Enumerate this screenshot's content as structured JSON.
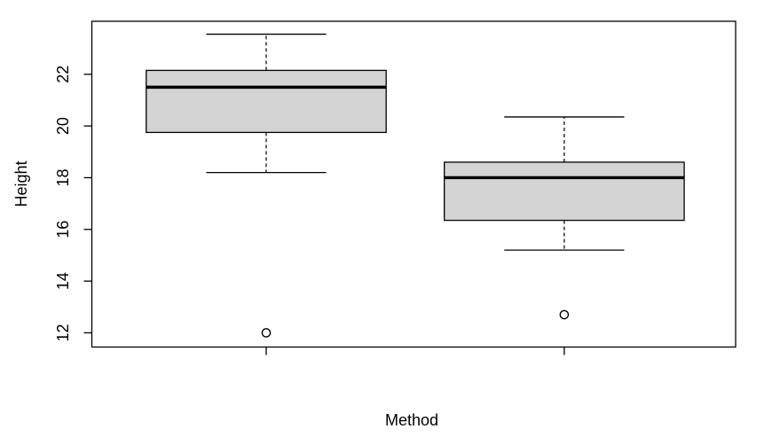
{
  "figure": {
    "background": "#ffffff"
  },
  "chart_data": {
    "type": "boxplot",
    "title": "",
    "xlabel": "Method",
    "ylabel": "Height",
    "x_tick_labels": [
      "",
      ""
    ],
    "y_ticks": [
      12,
      14,
      16,
      18,
      20,
      22
    ],
    "ylim": [
      11.45,
      24.05
    ],
    "xlim": [
      0.415,
      2.575
    ],
    "grid": false,
    "legend": false,
    "box_fill": "#d4d4d4",
    "stroke_color": "#000000",
    "groups": [
      {
        "position": 1,
        "label": "",
        "whisker_low": 18.2,
        "q1": 19.75,
        "median": 21.5,
        "q3": 22.15,
        "whisker_high": 23.55,
        "outliers": [
          12.0
        ]
      },
      {
        "position": 2,
        "label": "",
        "whisker_low": 15.2,
        "q1": 16.35,
        "median": 18.0,
        "q3": 18.6,
        "whisker_high": 20.35,
        "outliers": [
          12.7
        ]
      }
    ]
  }
}
